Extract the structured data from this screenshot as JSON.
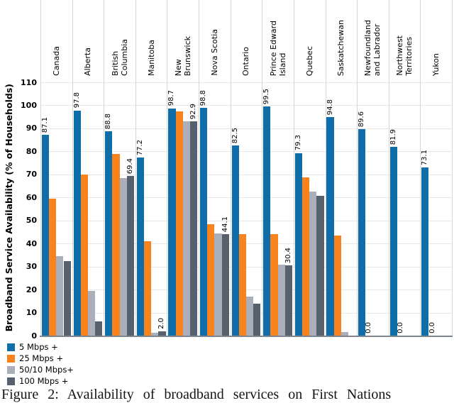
{
  "chart_data": {
    "type": "bar",
    "title": "",
    "ylabel": "Broadband Service Availability (% of Households)",
    "xlabel": "",
    "ylim": [
      0,
      110
    ],
    "yticks": [
      0,
      10,
      20,
      30,
      40,
      50,
      60,
      70,
      80,
      90,
      100,
      110
    ],
    "grid": true,
    "legend_position": "bottom-left",
    "categories": [
      "Canada",
      "Alberta",
      "British\nColumbia",
      "Manitoba",
      "New\nBrunswick",
      "Nova Scotia",
      "Ontario",
      "Prince Edward\nIsland",
      "Quebec",
      "Saskatchewan",
      "Newfoundland\nand Labrador",
      "Northwest\nTerritories",
      "Yukon"
    ],
    "series": [
      {
        "name": "5 Mbps +",
        "color": "#0f6da9",
        "values": [
          87.1,
          97.8,
          88.8,
          77.2,
          98.7,
          98.8,
          82.5,
          99.5,
          79.3,
          94.8,
          89.6,
          81.9,
          73.1
        ]
      },
      {
        "name": "25 Mbps +",
        "color": "#f8821b",
        "values": [
          59.5,
          70.0,
          79.0,
          41.0,
          97.5,
          48.5,
          44.0,
          44.0,
          68.7,
          43.5,
          0.0,
          0.0,
          0.0
        ]
      },
      {
        "name": "50/10 Mbps+",
        "color": "#a9b0bc",
        "values": [
          34.5,
          19.3,
          68.3,
          1.2,
          93.0,
          44.4,
          17.0,
          30.8,
          62.5,
          1.5,
          0.0,
          0.0,
          0.0
        ]
      },
      {
        "name": "100 Mbps +",
        "color": "#57616e",
        "values": [
          32.4,
          6.2,
          69.4,
          2.0,
          92.9,
          44.1,
          14.0,
          30.4,
          60.7,
          0.0,
          0.0,
          0.0,
          0.0
        ]
      }
    ],
    "bar_labels": [
      [
        {
          "series": 0,
          "text": "87.1"
        }
      ],
      [
        {
          "series": 0,
          "text": "97.8"
        }
      ],
      [
        {
          "series": 0,
          "text": "88.8"
        },
        {
          "series": 3,
          "text": "69.4"
        }
      ],
      [
        {
          "series": 0,
          "text": "77.2"
        },
        {
          "series": 3,
          "text": "2.0"
        }
      ],
      [
        {
          "series": 0,
          "text": "98.7"
        },
        {
          "series": 3,
          "text": "92.9"
        }
      ],
      [
        {
          "series": 0,
          "text": "98.8"
        },
        {
          "series": 3,
          "text": "44.1"
        }
      ],
      [
        {
          "series": 0,
          "text": "82.5"
        }
      ],
      [
        {
          "series": 0,
          "text": "99.5"
        },
        {
          "series": 3,
          "text": "30.4"
        }
      ],
      [
        {
          "series": 0,
          "text": "79.3"
        }
      ],
      [
        {
          "series": 0,
          "text": "94.8"
        }
      ],
      [
        {
          "series": 0,
          "text": "89.6"
        },
        {
          "series": 1,
          "text": "0.0"
        }
      ],
      [
        {
          "series": 0,
          "text": "81.9"
        },
        {
          "series": 1,
          "text": "0.0"
        }
      ],
      [
        {
          "series": 0,
          "text": "73.1"
        },
        {
          "series": 1,
          "text": "0.0"
        }
      ]
    ]
  },
  "caption": {
    "text": "Figure 2:  Availability of broadband services on First Nations"
  }
}
